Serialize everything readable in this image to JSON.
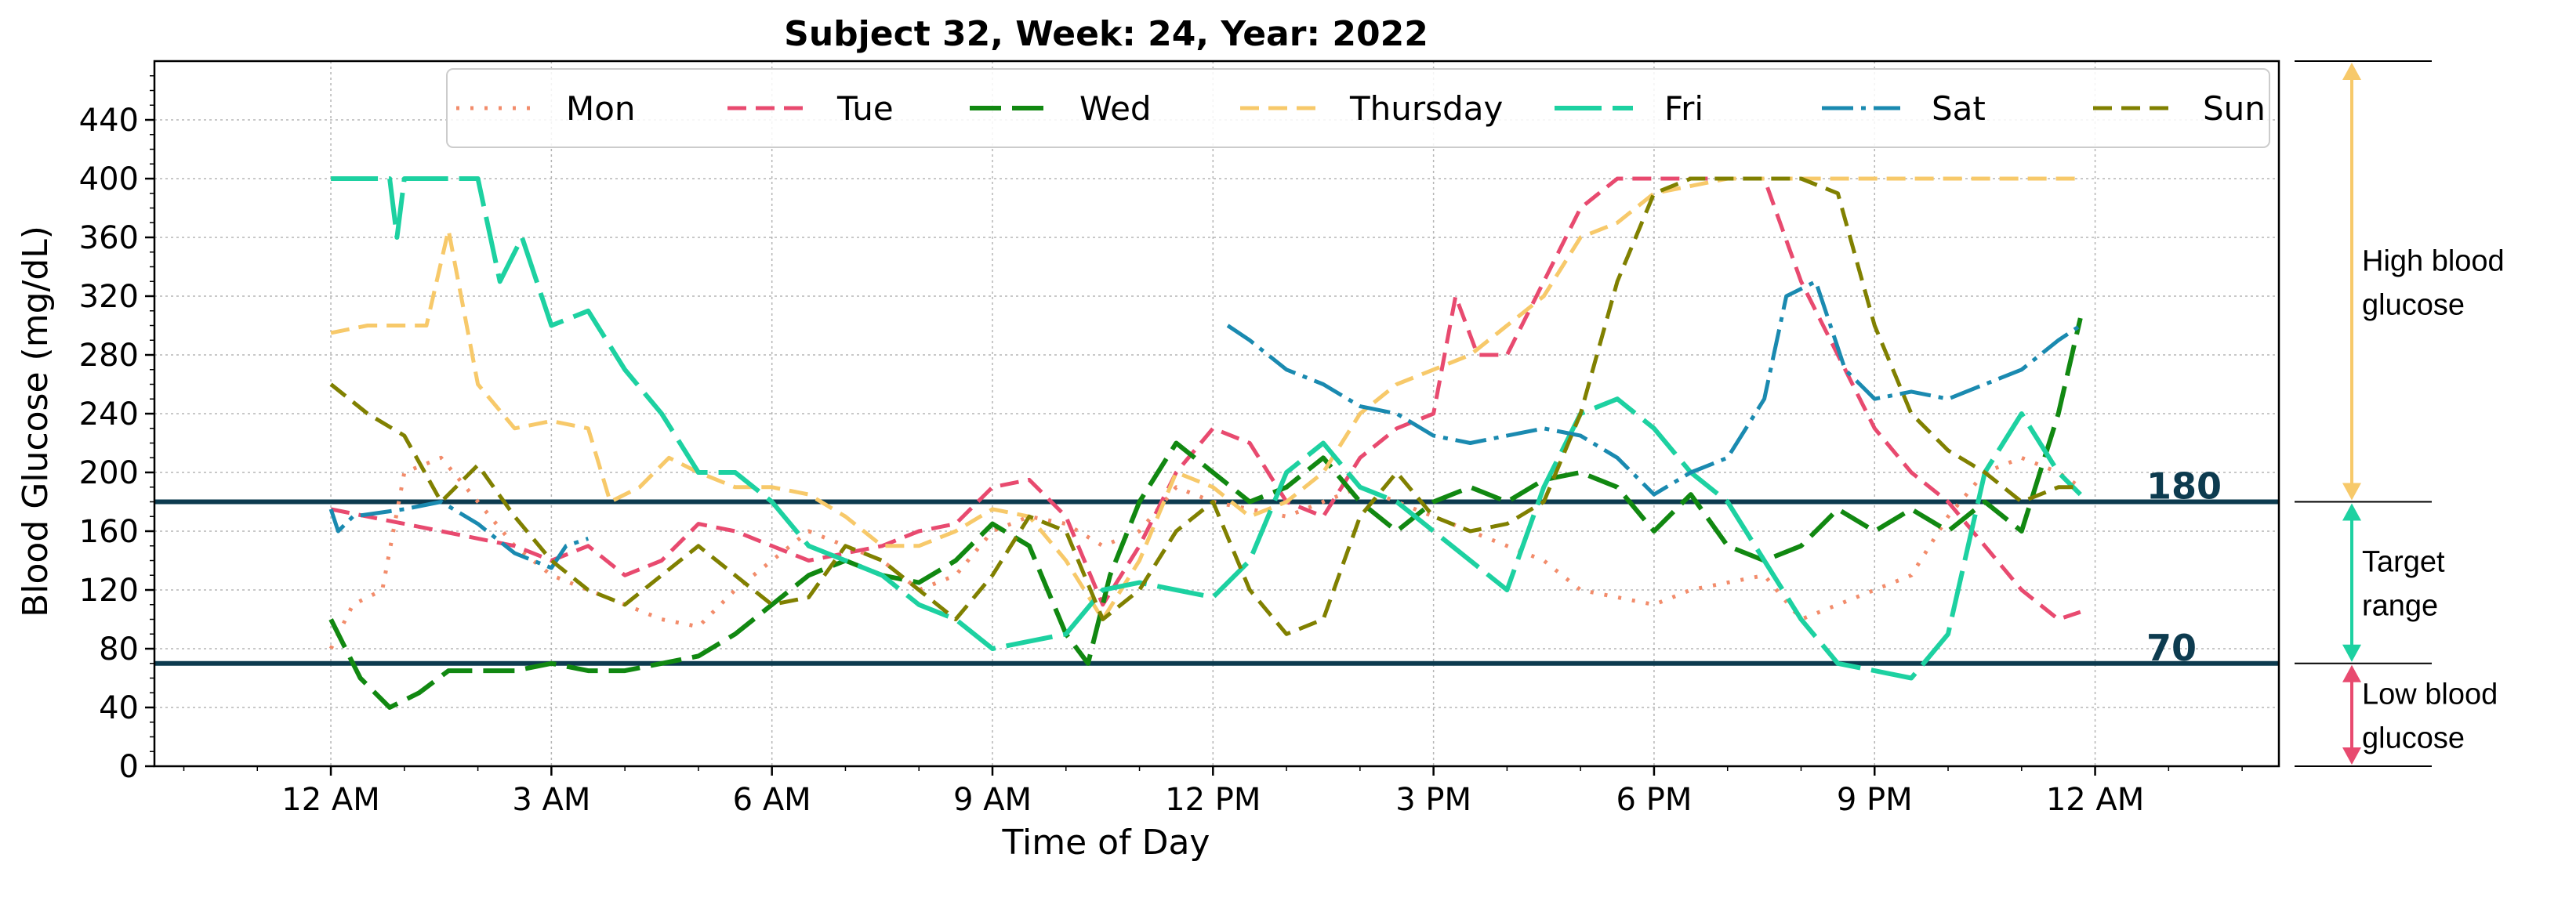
{
  "chart_data": {
    "type": "line",
    "title": "Subject 32, Week: 24, Year: 2022",
    "xlabel": "Time of Day",
    "ylabel": "Blood Glucose (mg/dL)",
    "xlim": [
      -2.4,
      26.5
    ],
    "ylim": [
      0,
      480
    ],
    "x_unit": "hours since midnight",
    "x_ticks": [
      0,
      3,
      6,
      9,
      12,
      15,
      18,
      21,
      24
    ],
    "x_tick_labels": [
      "12 AM",
      "3 AM",
      "6 AM",
      "9 AM",
      "12 PM",
      "3 PM",
      "6 PM",
      "9 PM",
      "12 AM"
    ],
    "y_ticks": [
      0,
      40,
      80,
      120,
      160,
      200,
      240,
      280,
      320,
      360,
      400,
      440
    ],
    "y_tick_labels": [
      "0",
      "40",
      "80",
      "120",
      "160",
      "200",
      "240",
      "280",
      "320",
      "360",
      "400",
      "440"
    ],
    "grid": true,
    "legend_position": "top",
    "reference_lines": [
      {
        "value": 180,
        "label": "180",
        "color": "#0d3b4f"
      },
      {
        "value": 70,
        "label": "70",
        "color": "#0d3b4f"
      }
    ],
    "ranges": [
      {
        "label": "High blood glucose",
        "lines": [
          "High blood",
          "glucose"
        ],
        "from": 180,
        "to": 480,
        "color": "#f7c96a"
      },
      {
        "label": "Target range",
        "lines": [
          "Target",
          "range"
        ],
        "from": 70,
        "to": 180,
        "color": "#1dd1a1"
      },
      {
        "label": "Low blood glucose",
        "lines": [
          "Low blood",
          "glucose"
        ],
        "from": 0,
        "to": 70,
        "color": "#e84a6f"
      }
    ],
    "series": [
      {
        "name": "Mon",
        "color": "#f28c6b",
        "dash": "4,14",
        "width": 5,
        "x": [
          0,
          0.3,
          0.7,
          1.0,
          1.5,
          2.0,
          2.5,
          3.0,
          3.5,
          4.0,
          4.5,
          5.0,
          5.5,
          6.0,
          6.5,
          7.0,
          7.5,
          8.0,
          8.5,
          9.0,
          9.5,
          10.0,
          10.5,
          11.0,
          11.5,
          12.0,
          12.5,
          13.0,
          13.5,
          14.0,
          14.5,
          15.0,
          15.5,
          16.0,
          16.5,
          17.0,
          17.5,
          18.0,
          18.5,
          19.0,
          19.5,
          20.0,
          20.5,
          21.0,
          21.5,
          22.0,
          22.5,
          23.0,
          23.5,
          23.8
        ],
        "y": [
          80,
          110,
          120,
          200,
          210,
          180,
          150,
          130,
          120,
          110,
          100,
          95,
          120,
          140,
          160,
          150,
          140,
          120,
          130,
          160,
          170,
          165,
          150,
          160,
          190,
          180,
          175,
          170,
          180,
          190,
          180,
          170,
          160,
          150,
          140,
          120,
          115,
          110,
          120,
          125,
          130,
          100,
          110,
          120,
          130,
          170,
          200,
          210,
          200,
          190
        ]
      },
      {
        "name": "Tue",
        "color": "#e84a6f",
        "dash": "24,12",
        "width": 5,
        "x": [
          0,
          0.5,
          1.0,
          1.5,
          2.0,
          2.5,
          3.0,
          3.5,
          4.0,
          4.5,
          5.0,
          5.5,
          6.0,
          6.5,
          7.0,
          7.5,
          8.0,
          8.5,
          9.0,
          9.5,
          10.0,
          10.5,
          11.0,
          11.5,
          12.0,
          12.5,
          13.0,
          13.5,
          14.0,
          14.5,
          15.0,
          15.3,
          15.6,
          16.0,
          16.5,
          17.0,
          17.5,
          18.0,
          18.5,
          19.0,
          19.5,
          20.0,
          20.5,
          21.0,
          21.5,
          22.0,
          22.5,
          23.0,
          23.5,
          23.8
        ],
        "y": [
          175,
          170,
          165,
          160,
          155,
          150,
          140,
          150,
          130,
          140,
          165,
          160,
          150,
          140,
          145,
          150,
          160,
          165,
          190,
          195,
          170,
          110,
          150,
          200,
          230,
          220,
          180,
          170,
          210,
          230,
          240,
          320,
          280,
          280,
          330,
          380,
          400,
          400,
          400,
          400,
          400,
          330,
          280,
          230,
          200,
          180,
          150,
          120,
          100,
          105
        ]
      },
      {
        "name": "Wed",
        "color": "#118811",
        "dash": "40,14",
        "width": 6,
        "x": [
          0,
          0.4,
          0.8,
          1.2,
          1.6,
          2.0,
          2.5,
          3.0,
          3.5,
          4.0,
          4.5,
          5.0,
          5.5,
          6.0,
          6.5,
          7.0,
          7.5,
          8.0,
          8.5,
          9.0,
          9.5,
          10.0,
          10.3,
          10.6,
          11.0,
          11.5,
          12.0,
          12.5,
          13.0,
          13.5,
          14.0,
          14.5,
          15.0,
          15.5,
          16.0,
          16.5,
          17.0,
          17.5,
          18.0,
          18.5,
          19.0,
          19.5,
          20.0,
          20.5,
          21.0,
          21.5,
          22.0,
          22.5,
          23.0,
          23.5,
          23.8
        ],
        "y": [
          100,
          60,
          40,
          50,
          65,
          65,
          65,
          70,
          65,
          65,
          70,
          75,
          90,
          110,
          130,
          140,
          130,
          125,
          140,
          165,
          150,
          90,
          70,
          130,
          180,
          220,
          200,
          180,
          190,
          210,
          180,
          160,
          180,
          190,
          180,
          195,
          200,
          190,
          160,
          185,
          150,
          140,
          150,
          175,
          160,
          175,
          160,
          180,
          160,
          240,
          305
        ]
      },
      {
        "name": "Thursday",
        "color": "#f7c96a",
        "dash": "24,12",
        "width": 5,
        "x": [
          0,
          0.5,
          1.0,
          1.3,
          1.6,
          2.0,
          2.5,
          3.0,
          3.5,
          3.8,
          4.2,
          4.6,
          5.0,
          5.5,
          6.0,
          6.5,
          7.0,
          7.5,
          8.0,
          8.5,
          9.0,
          9.5,
          10.0,
          10.5,
          11.0,
          11.5,
          12.0,
          12.5,
          13.0,
          13.5,
          14.0,
          14.5,
          15.0,
          15.5,
          16.0,
          16.5,
          17.0,
          17.5,
          18.0,
          18.5,
          19.0,
          19.5,
          20.0,
          21.0,
          22.0,
          23.0,
          23.8
        ],
        "y": [
          295,
          300,
          300,
          300,
          365,
          260,
          230,
          235,
          230,
          180,
          190,
          210,
          200,
          190,
          190,
          185,
          170,
          150,
          150,
          160,
          175,
          170,
          140,
          100,
          140,
          200,
          190,
          170,
          180,
          200,
          240,
          260,
          270,
          280,
          300,
          320,
          360,
          370,
          390,
          395,
          400,
          400,
          400,
          400,
          400,
          400,
          400
        ]
      },
      {
        "name": "Fri",
        "color": "#1dd1a1",
        "dash": "60,14",
        "width": 6,
        "x": [
          0,
          0.5,
          0.8,
          0.9,
          1.0,
          1.5,
          2.0,
          2.3,
          2.6,
          3.0,
          3.5,
          4.0,
          4.5,
          5.0,
          5.5,
          6.0,
          6.5,
          7.0,
          7.5,
          8.0,
          8.5,
          9.0,
          9.5,
          10.0,
          10.5,
          11.0,
          11.5,
          12.0,
          12.5,
          13.0,
          13.5,
          14.0,
          14.5,
          15.0,
          15.5,
          16.0,
          16.5,
          17.0,
          17.5,
          18.0,
          18.5,
          19.0,
          19.5,
          20.0,
          20.5,
          21.0,
          21.5,
          22.0,
          22.5,
          23.0,
          23.5,
          23.8
        ],
        "y": [
          400,
          400,
          400,
          360,
          400,
          400,
          400,
          330,
          360,
          300,
          310,
          270,
          240,
          200,
          200,
          180,
          150,
          140,
          130,
          110,
          100,
          80,
          85,
          90,
          120,
          125,
          120,
          115,
          140,
          200,
          220,
          190,
          180,
          160,
          140,
          120,
          190,
          240,
          250,
          230,
          200,
          180,
          140,
          100,
          70,
          65,
          60,
          90,
          200,
          240,
          200,
          185
        ]
      },
      {
        "name": "Sat",
        "color": "#1a8ab0",
        "dash": "40,10,6,10",
        "width": 5,
        "x": [
          0,
          0.1,
          0.3,
          1.0,
          1.5,
          2.0,
          2.5,
          3.0,
          3.2,
          3.5,
          12.2,
          12.5,
          13.0,
          13.5,
          14.0,
          14.5,
          15.0,
          15.5,
          16.0,
          16.5,
          17.0,
          17.5,
          18.0,
          18.5,
          19.0,
          19.5,
          19.8,
          20.2,
          20.6,
          21.0,
          21.5,
          22.0,
          22.5,
          23.0,
          23.5,
          23.8
        ],
        "y": [
          175,
          160,
          170,
          175,
          180,
          165,
          145,
          135,
          150,
          155,
          300,
          290,
          270,
          260,
          245,
          240,
          225,
          220,
          225,
          230,
          225,
          210,
          185,
          200,
          210,
          250,
          320,
          330,
          270,
          250,
          255,
          250,
          260,
          270,
          290,
          300
        ]
      },
      {
        "name": "Sun",
        "color": "#808000",
        "dash": "24,12",
        "width": 5,
        "x": [
          0,
          0.5,
          1.0,
          1.5,
          2.0,
          2.5,
          3.0,
          3.5,
          4.0,
          4.5,
          5.0,
          5.5,
          6.0,
          6.5,
          7.0,
          7.5,
          8.0,
          8.5,
          9.0,
          9.5,
          10.0,
          10.5,
          11.0,
          11.5,
          12.0,
          12.5,
          13.0,
          13.5,
          14.0,
          14.5,
          15.0,
          15.5,
          16.0,
          16.5,
          17.0,
          17.5,
          18.0,
          18.5,
          19.0,
          19.5,
          20.0,
          20.5,
          21.0,
          21.5,
          22.0,
          22.5,
          23.0,
          23.5,
          23.8
        ],
        "y": [
          260,
          240,
          225,
          180,
          205,
          170,
          140,
          120,
          110,
          130,
          150,
          130,
          110,
          115,
          150,
          140,
          120,
          100,
          130,
          170,
          160,
          100,
          120,
          160,
          180,
          120,
          90,
          100,
          170,
          200,
          170,
          160,
          165,
          180,
          240,
          330,
          390,
          400,
          400,
          400,
          400,
          390,
          300,
          240,
          215,
          200,
          180,
          190,
          190
        ]
      }
    ]
  }
}
